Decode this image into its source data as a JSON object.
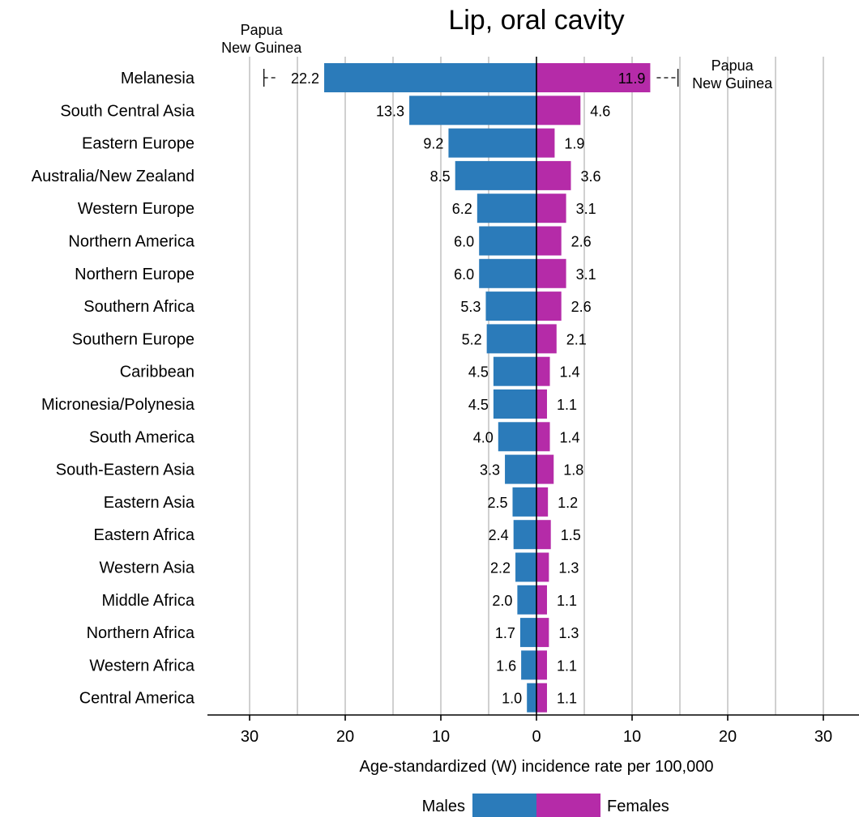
{
  "chart_data": {
    "type": "bar",
    "orientation": "horizontal-diverging",
    "title": "Lip, oral cavity",
    "xlabel": "Age-standardized (W) incidence rate per 100,000",
    "x_ticks": [
      "30",
      "20",
      "10",
      "0",
      "10",
      "20",
      "30"
    ],
    "xlim": [
      -30,
      30
    ],
    "grid": true,
    "categories": [
      "Melanesia",
      "South Central Asia",
      "Eastern Europe",
      "Australia/New Zealand",
      "Western Europe",
      "Northern America",
      "Northern Europe",
      "Southern Africa",
      "Southern Europe",
      "Caribbean",
      "Micronesia/Polynesia",
      "South America",
      "South-Eastern Asia",
      "Eastern Asia",
      "Eastern Africa",
      "Western Asia",
      "Middle Africa",
      "Northern Africa",
      "Western Africa",
      "Central America"
    ],
    "series": [
      {
        "name": "Males",
        "color": "#2b7bba",
        "side": "left",
        "values": [
          22.2,
          13.3,
          9.2,
          8.5,
          6.2,
          6.0,
          6.0,
          5.3,
          5.2,
          4.5,
          4.5,
          4.0,
          3.3,
          2.5,
          2.4,
          2.2,
          2.0,
          1.7,
          1.6,
          1.0
        ],
        "labels": [
          "22.2",
          "13.3",
          "9.2",
          "8.5",
          "6.2",
          "6.0",
          "6.0",
          "5.3",
          "5.2",
          "4.5",
          "4.5",
          "4.0",
          "3.3",
          "2.5",
          "2.4",
          "2.2",
          "2.0",
          "1.7",
          "1.6",
          "1.0"
        ]
      },
      {
        "name": "Females",
        "color": "#b52ba8",
        "side": "right",
        "values": [
          11.9,
          4.6,
          1.9,
          3.6,
          3.1,
          2.6,
          3.1,
          2.6,
          2.1,
          1.4,
          1.1,
          1.4,
          1.8,
          1.2,
          1.5,
          1.3,
          1.1,
          1.3,
          1.1,
          1.1
        ],
        "labels": [
          "11.9",
          "4.6",
          "1.9",
          "3.6",
          "3.1",
          "2.6",
          "3.1",
          "2.6",
          "2.1",
          "1.4",
          "1.1",
          "1.4",
          "1.8",
          "1.2",
          "1.5",
          "1.3",
          "1.1",
          "1.3",
          "1.1",
          "1.1"
        ]
      }
    ],
    "annotations": [
      {
        "side": "left",
        "category": "Melanesia",
        "country_lines": [
          "Papua",
          "New Guinea"
        ],
        "value": 28.5
      },
      {
        "side": "right",
        "category": "Melanesia",
        "country_lines": [
          "Papua",
          "New Guinea"
        ],
        "value": 14.8
      }
    ],
    "legend": {
      "position": "bottom",
      "entries": [
        "Males",
        "Females"
      ]
    }
  }
}
